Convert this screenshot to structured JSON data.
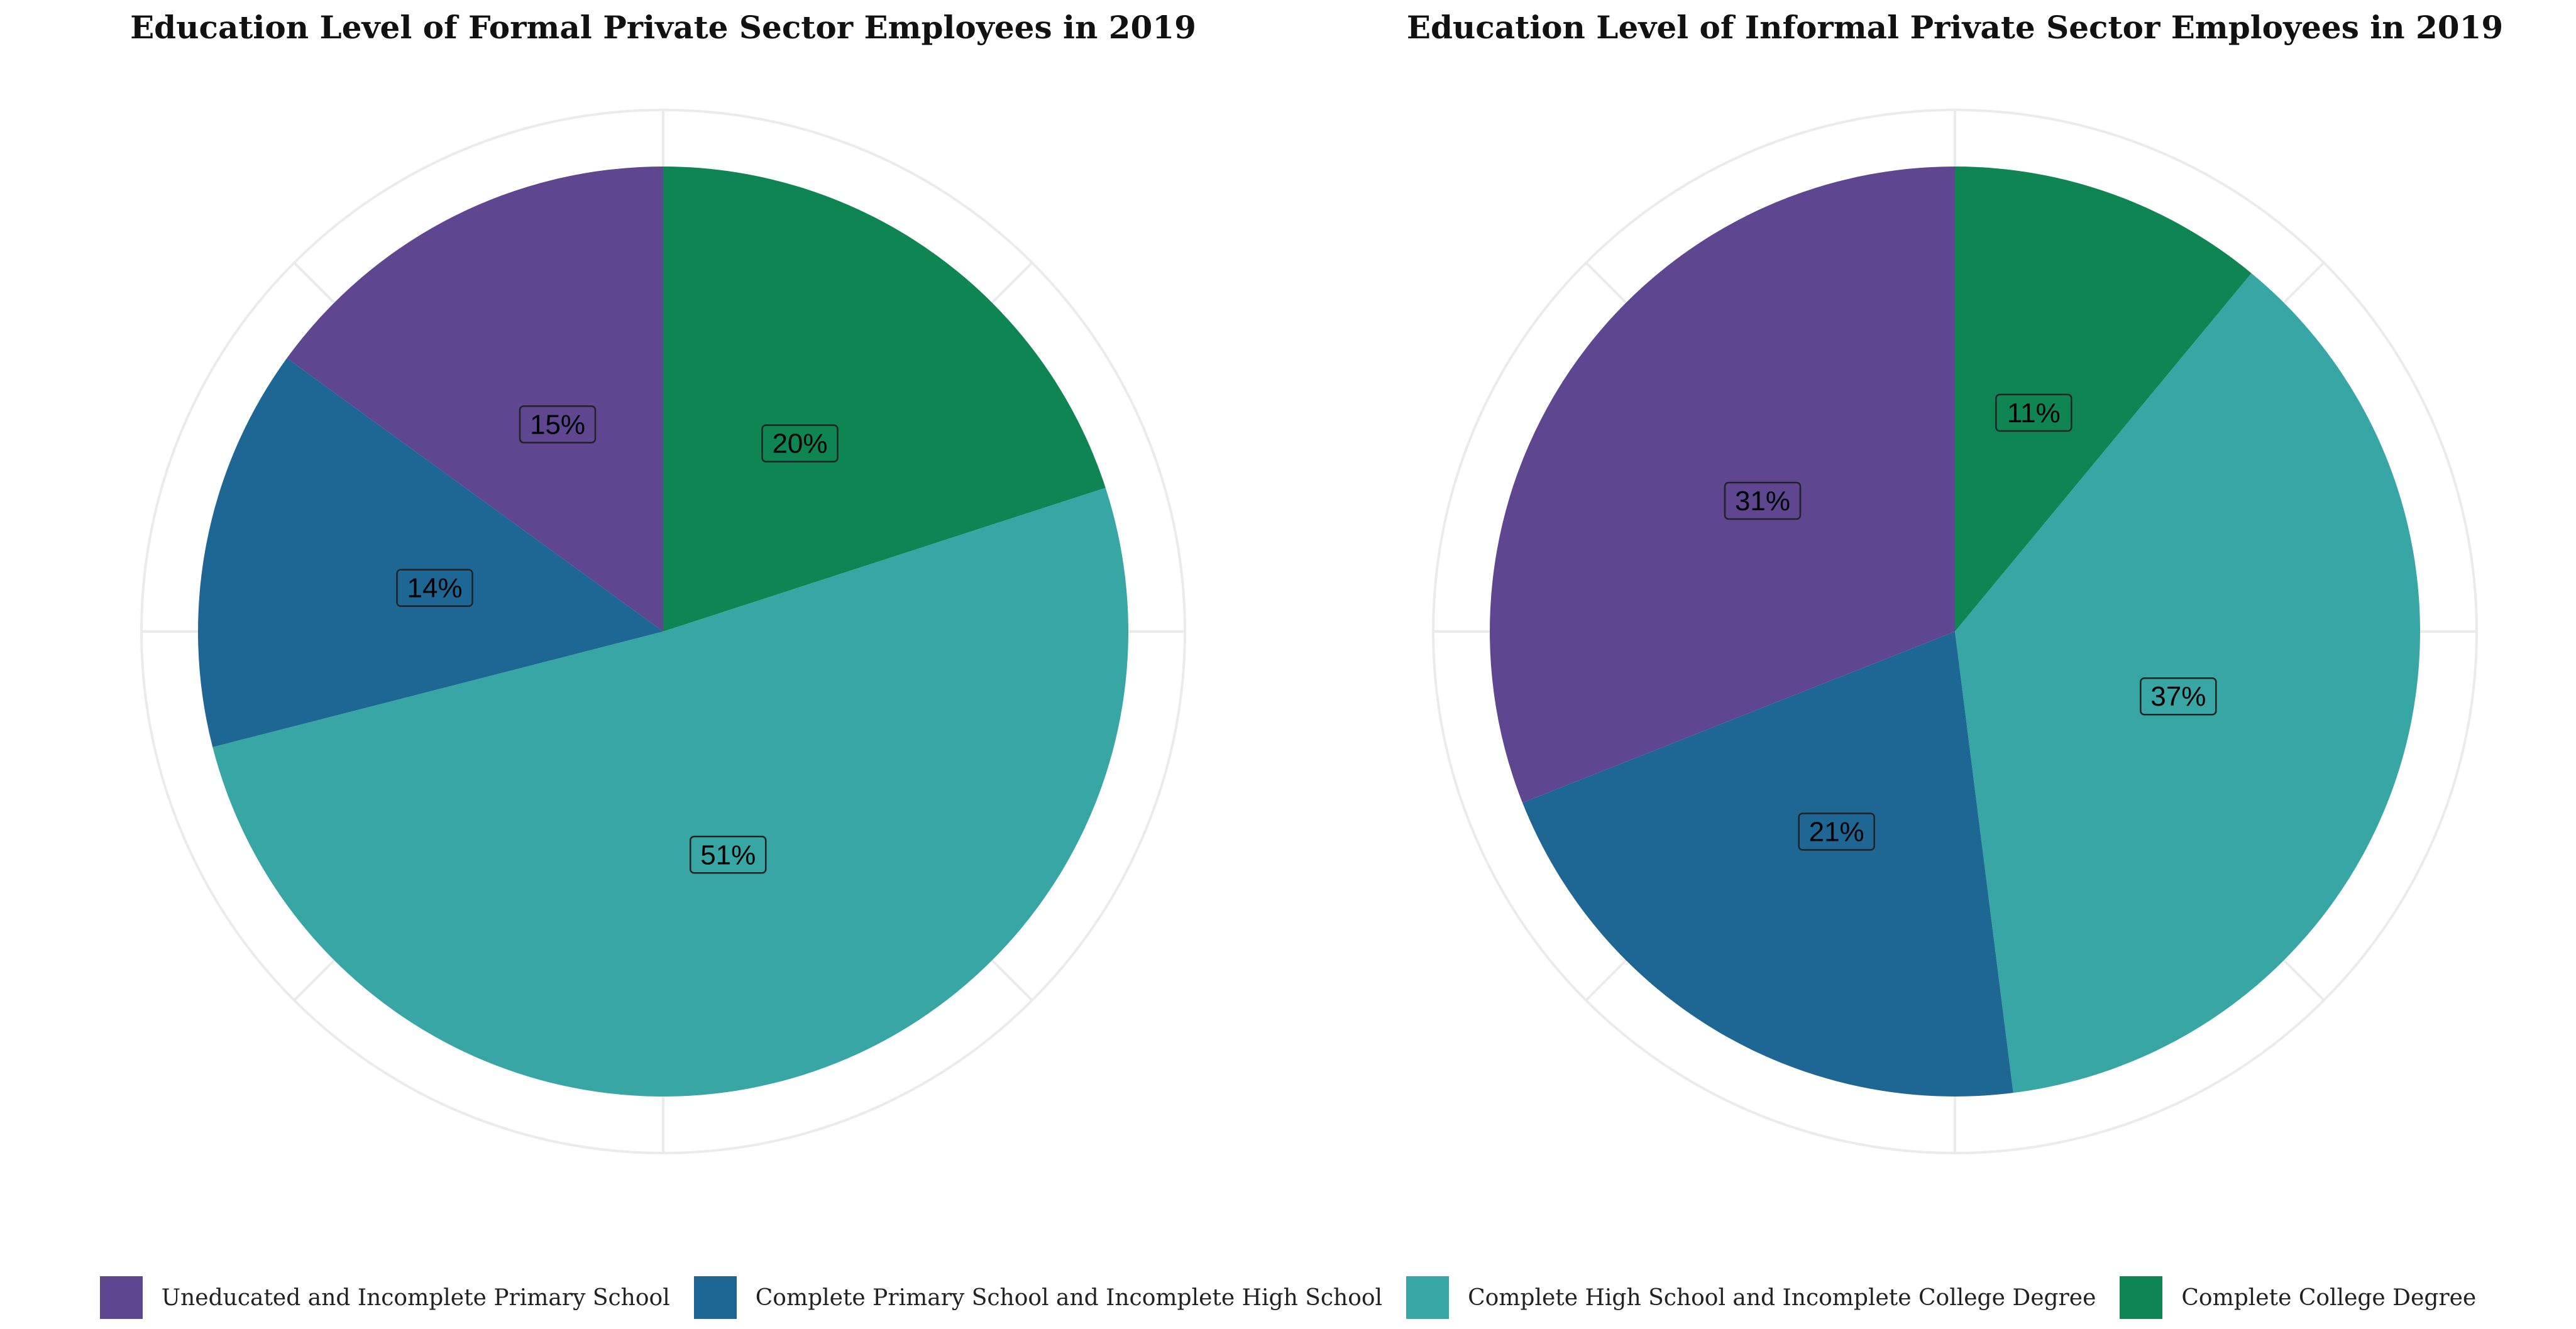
{
  "colors": {
    "Uneducated and Incomplete Primary School": "#5e4690",
    "Complete Primary School and Incomplete High School": "#1e6794",
    "Complete High School and Incomplete College Degree": "#38a6a5",
    "Complete College Degree": "#0f8554",
    "grid": "#ebebeb",
    "label_border": "#222222"
  },
  "legend": {
    "items": [
      {
        "label": "Uneducated and Incomplete Primary School",
        "color": "#5e4690"
      },
      {
        "label": "Complete Primary School and Incomplete High School",
        "color": "#1e6794"
      },
      {
        "label": "Complete High School and Incomplete College Degree",
        "color": "#38a6a5"
      },
      {
        "label": "Complete College Degree",
        "color": "#0f8554"
      }
    ]
  },
  "chart_data": [
    {
      "type": "pie",
      "title": "Education Level of Formal Private Sector Employees in 2019",
      "categories": [
        "Complete College Degree",
        "Complete High School and Incomplete College Degree",
        "Complete Primary School and Incomplete High School",
        "Uneducated and Incomplete Primary School"
      ],
      "values": [
        20,
        51,
        14,
        15
      ],
      "labels": [
        "20%",
        "51%",
        "14%",
        "15%"
      ],
      "legend_position": "bottom",
      "grid": true
    },
    {
      "type": "pie",
      "title": "Education Level of Informal Private Sector Employees in 2019",
      "categories": [
        "Complete College Degree",
        "Complete High School and Incomplete College Degree",
        "Complete Primary School and Incomplete High School",
        "Uneducated and Incomplete Primary School"
      ],
      "values": [
        11,
        37,
        21,
        31
      ],
      "labels": [
        "11%",
        "37%",
        "21%",
        "31%"
      ],
      "legend_position": "bottom",
      "grid": true
    }
  ]
}
